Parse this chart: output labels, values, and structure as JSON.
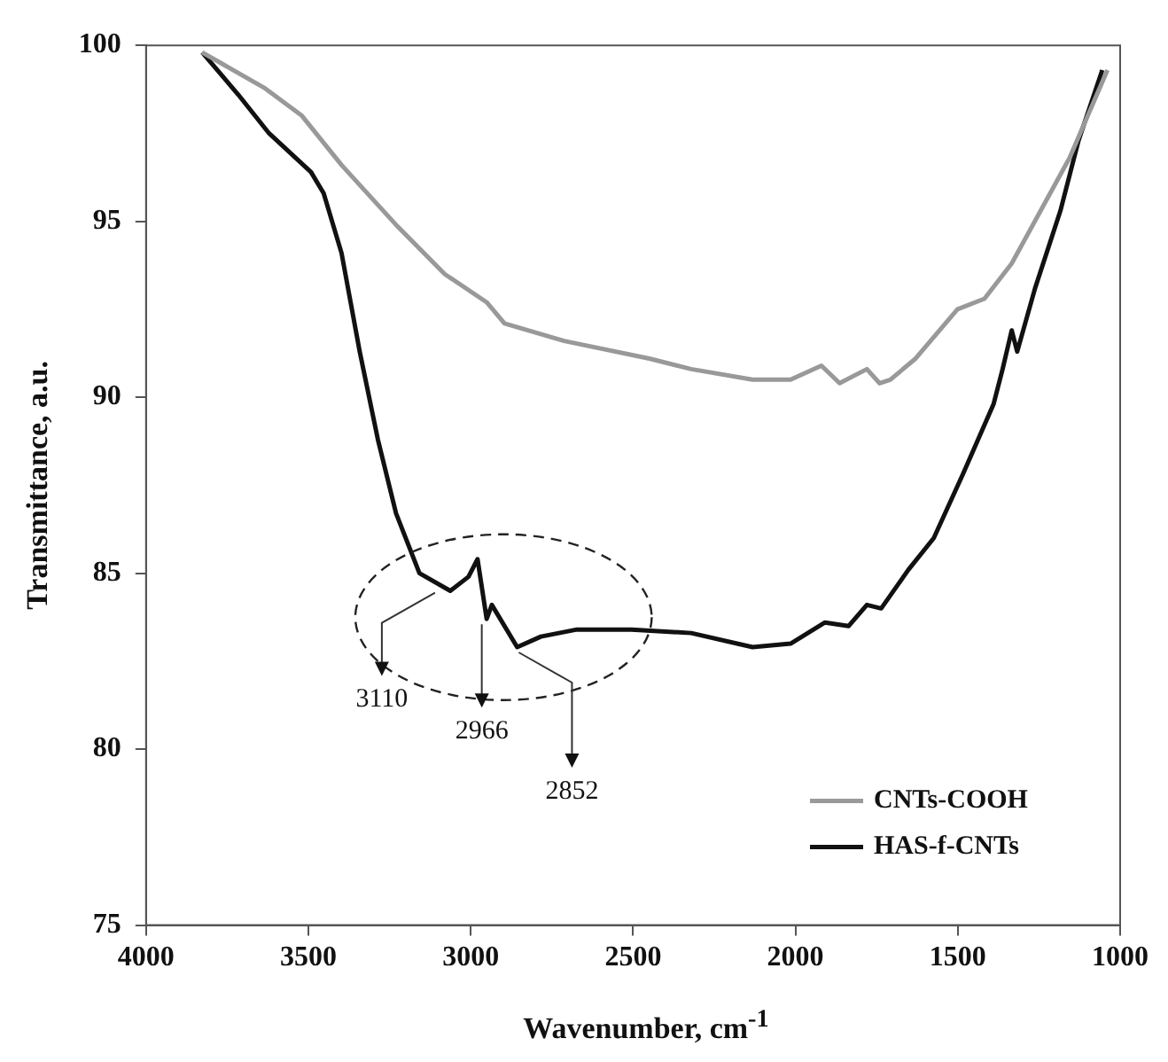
{
  "chart_data": {
    "type": "line",
    "xlabel": "Wavenumber, cm$^{-1}$",
    "ylabel": "Transmittance, a.u.",
    "xlim": [
      4000,
      1000
    ],
    "xticks": [
      4000,
      3500,
      3000,
      2500,
      2000,
      1500,
      1000
    ],
    "ylim": [
      75,
      100
    ],
    "yticks": [
      75,
      80,
      85,
      90,
      95,
      100
    ],
    "grid": false,
    "legend": "bottom right",
    "line_style": "solid",
    "series": [
      {
        "name": "CNTs-COOH",
        "color": "#999999",
        "x": [
          3827,
          3637,
          3520,
          3398,
          3230,
          3080,
          2951,
          2896,
          2712,
          2450,
          2321,
          2132,
          2015,
          1920,
          1864,
          1780,
          1741,
          1708,
          1630,
          1501,
          1418,
          1334,
          1239,
          1156,
          1039
        ],
        "values": [
          99.8,
          98.8,
          98.0,
          96.6,
          94.9,
          93.5,
          92.7,
          92.1,
          91.6,
          91.1,
          90.8,
          90.5,
          90.5,
          90.9,
          90.4,
          90.8,
          90.4,
          90.5,
          91.1,
          92.5,
          92.8,
          93.8,
          95.4,
          96.8,
          99.3
        ]
      },
      {
        "name": "HAS-f-CNTs",
        "color": "#111111",
        "x": [
          3827,
          3716,
          3621,
          3492,
          3453,
          3398,
          3342,
          3286,
          3230,
          3158,
          3063,
          3007,
          2979,
          2951,
          2935,
          2857,
          2784,
          2673,
          2505,
          2321,
          2132,
          2015,
          1909,
          1836,
          1780,
          1736,
          1652,
          1574,
          1485,
          1390,
          1362,
          1334,
          1317,
          1262,
          1184,
          1128,
          1055
        ],
        "values": [
          99.8,
          98.6,
          97.5,
          96.4,
          95.8,
          94.1,
          91.3,
          88.8,
          86.7,
          85.0,
          84.5,
          84.9,
          85.4,
          83.7,
          84.1,
          82.9,
          83.2,
          83.4,
          83.4,
          83.3,
          82.9,
          83.0,
          83.6,
          83.5,
          84.1,
          84.0,
          85.1,
          86.0,
          87.8,
          89.8,
          90.8,
          91.9,
          91.3,
          93.1,
          95.3,
          97.3,
          99.3
        ]
      }
    ],
    "annotations": [
      {
        "text": "3110",
        "x": 3110,
        "y": 84.6
      },
      {
        "text": "2966",
        "x": 2966,
        "y": 83.7
      },
      {
        "text": "2852",
        "x": 2852,
        "y": 82.9
      }
    ]
  }
}
